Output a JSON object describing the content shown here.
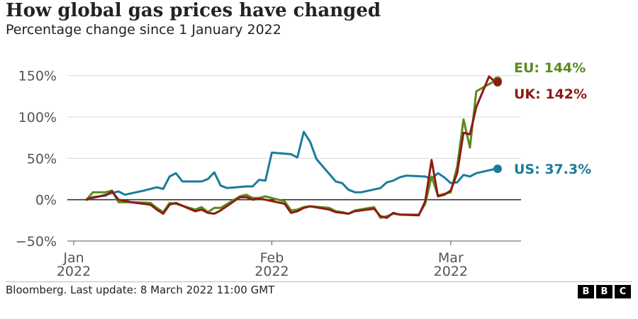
{
  "header": {
    "title": "How global gas prices have changed",
    "subtitle": "Percentage change since 1 January 2022"
  },
  "footer": {
    "source": "Bloomberg. Last update: 8 March 2022 11:00 GMT",
    "logo_letters": [
      "B",
      "B",
      "C"
    ]
  },
  "chart_data": {
    "type": "line",
    "x_unit": "date",
    "ylim": [
      -50,
      160
    ],
    "xlim": [
      "2021-12-31",
      "2022-03-12"
    ],
    "y_ticks": [
      -50,
      0,
      50,
      100,
      150
    ],
    "y_tick_labels": [
      "−50%",
      "0%",
      "50%",
      "100%",
      "150%"
    ],
    "x_ticks": [
      {
        "date": "2022-01-01",
        "label_1": "Jan",
        "label_2": "2022"
      },
      {
        "date": "2022-02-01",
        "label_1": "Feb",
        "label_2": "2022"
      },
      {
        "date": "2022-03-01",
        "label_1": "Mar",
        "label_2": "2022"
      }
    ],
    "grid": "horizontal",
    "series": [
      {
        "key": "us",
        "color": "#1a7c9a",
        "end_label": "US: 37.3%",
        "points": [
          [
            "2022-01-03",
            0
          ],
          [
            "2022-01-05",
            4
          ],
          [
            "2022-01-07",
            8
          ],
          [
            "2022-01-08",
            10
          ],
          [
            "2022-01-09",
            6
          ],
          [
            "2022-01-12",
            11
          ],
          [
            "2022-01-14",
            15
          ],
          [
            "2022-01-15",
            13
          ],
          [
            "2022-01-16",
            28
          ],
          [
            "2022-01-17",
            32
          ],
          [
            "2022-01-18",
            22
          ],
          [
            "2022-01-21",
            22
          ],
          [
            "2022-01-22",
            25
          ],
          [
            "2022-01-23",
            33
          ],
          [
            "2022-01-24",
            17
          ],
          [
            "2022-01-25",
            14
          ],
          [
            "2022-01-28",
            16
          ],
          [
            "2022-01-29",
            16
          ],
          [
            "2022-01-30",
            24
          ],
          [
            "2022-01-31",
            23
          ],
          [
            "2022-02-01",
            57
          ],
          [
            "2022-02-04",
            55
          ],
          [
            "2022-02-05",
            51
          ],
          [
            "2022-02-06",
            82
          ],
          [
            "2022-02-07",
            70
          ],
          [
            "2022-02-08",
            49
          ],
          [
            "2022-02-11",
            22
          ],
          [
            "2022-02-12",
            20
          ],
          [
            "2022-02-13",
            12
          ],
          [
            "2022-02-14",
            9
          ],
          [
            "2022-02-15",
            9
          ],
          [
            "2022-02-18",
            14
          ],
          [
            "2022-02-19",
            21
          ],
          [
            "2022-02-20",
            23
          ],
          [
            "2022-02-21",
            27
          ],
          [
            "2022-02-22",
            29
          ],
          [
            "2022-02-25",
            28
          ],
          [
            "2022-02-26",
            25
          ],
          [
            "2022-02-27",
            32
          ],
          [
            "2022-02-28",
            27
          ],
          [
            "2022-03-01",
            20
          ],
          [
            "2022-03-02",
            21
          ],
          [
            "2022-03-03",
            30
          ],
          [
            "2022-03-04",
            28
          ],
          [
            "2022-03-05",
            32
          ],
          [
            "2022-03-08",
            37.3
          ]
        ]
      },
      {
        "key": "eu",
        "color": "#5a8a1c",
        "end_label": "EU: 144%",
        "points": [
          [
            "2022-01-03",
            0
          ],
          [
            "2022-01-04",
            9
          ],
          [
            "2022-01-06",
            9
          ],
          [
            "2022-01-07",
            11
          ],
          [
            "2022-01-08",
            -3
          ],
          [
            "2022-01-10",
            -3
          ],
          [
            "2022-01-13",
            -4
          ],
          [
            "2022-01-14",
            -10
          ],
          [
            "2022-01-15",
            -15
          ],
          [
            "2022-01-16",
            -4
          ],
          [
            "2022-01-17",
            -5
          ],
          [
            "2022-01-20",
            -12
          ],
          [
            "2022-01-21",
            -9
          ],
          [
            "2022-01-22",
            -15
          ],
          [
            "2022-01-23",
            -10
          ],
          [
            "2022-01-24",
            -10
          ],
          [
            "2022-01-27",
            4
          ],
          [
            "2022-01-28",
            6
          ],
          [
            "2022-01-29",
            2
          ],
          [
            "2022-01-30",
            2
          ],
          [
            "2022-01-31",
            4
          ],
          [
            "2022-02-03",
            -2
          ],
          [
            "2022-02-04",
            -13
          ],
          [
            "2022-02-05",
            -12
          ],
          [
            "2022-02-06",
            -9
          ],
          [
            "2022-02-07",
            -8
          ],
          [
            "2022-02-10",
            -10
          ],
          [
            "2022-02-11",
            -14
          ],
          [
            "2022-02-12",
            -15
          ],
          [
            "2022-02-13",
            -17
          ],
          [
            "2022-02-14",
            -13
          ],
          [
            "2022-02-17",
            -9
          ],
          [
            "2022-02-18",
            -22
          ],
          [
            "2022-02-19",
            -20
          ],
          [
            "2022-02-20",
            -17
          ],
          [
            "2022-02-21",
            -18
          ],
          [
            "2022-02-24",
            -18
          ],
          [
            "2022-02-25",
            -5
          ],
          [
            "2022-02-26",
            28
          ],
          [
            "2022-02-27",
            5
          ],
          [
            "2022-02-28",
            7
          ],
          [
            "2022-03-01",
            9
          ],
          [
            "2022-03-02",
            40
          ],
          [
            "2022-03-03",
            97
          ],
          [
            "2022-03-04",
            63
          ],
          [
            "2022-03-05",
            131
          ],
          [
            "2022-03-08",
            144
          ]
        ]
      },
      {
        "key": "uk",
        "color": "#8c1b14",
        "end_label": "UK: 142%",
        "points": [
          [
            "2022-01-03",
            0
          ],
          [
            "2022-01-04",
            3
          ],
          [
            "2022-01-06",
            5
          ],
          [
            "2022-01-07",
            10
          ],
          [
            "2022-01-08",
            0
          ],
          [
            "2022-01-10",
            -3
          ],
          [
            "2022-01-13",
            -6
          ],
          [
            "2022-01-14",
            -12
          ],
          [
            "2022-01-15",
            -17
          ],
          [
            "2022-01-16",
            -6
          ],
          [
            "2022-01-17",
            -4
          ],
          [
            "2022-01-20",
            -14
          ],
          [
            "2022-01-21",
            -12
          ],
          [
            "2022-01-22",
            -16
          ],
          [
            "2022-01-23",
            -17
          ],
          [
            "2022-01-24",
            -13
          ],
          [
            "2022-01-27",
            3
          ],
          [
            "2022-01-28",
            3
          ],
          [
            "2022-01-29",
            0
          ],
          [
            "2022-01-30",
            1
          ],
          [
            "2022-01-31",
            0
          ],
          [
            "2022-02-03",
            -5
          ],
          [
            "2022-02-04",
            -16
          ],
          [
            "2022-02-05",
            -14
          ],
          [
            "2022-02-06",
            -10
          ],
          [
            "2022-02-07",
            -8
          ],
          [
            "2022-02-10",
            -12
          ],
          [
            "2022-02-11",
            -15
          ],
          [
            "2022-02-12",
            -16
          ],
          [
            "2022-02-13",
            -17
          ],
          [
            "2022-02-14",
            -14
          ],
          [
            "2022-02-17",
            -11
          ],
          [
            "2022-02-18",
            -20
          ],
          [
            "2022-02-19",
            -22
          ],
          [
            "2022-02-20",
            -16
          ],
          [
            "2022-02-21",
            -18
          ],
          [
            "2022-02-24",
            -19
          ],
          [
            "2022-02-25",
            -2
          ],
          [
            "2022-02-26",
            48
          ],
          [
            "2022-02-27",
            4
          ],
          [
            "2022-02-28",
            6
          ],
          [
            "2022-03-01",
            11
          ],
          [
            "2022-03-02",
            32
          ],
          [
            "2022-03-03",
            81
          ],
          [
            "2022-03-04",
            79
          ],
          [
            "2022-03-05",
            112
          ],
          [
            "2022-03-07",
            149
          ],
          [
            "2022-03-08",
            142
          ]
        ]
      }
    ]
  }
}
